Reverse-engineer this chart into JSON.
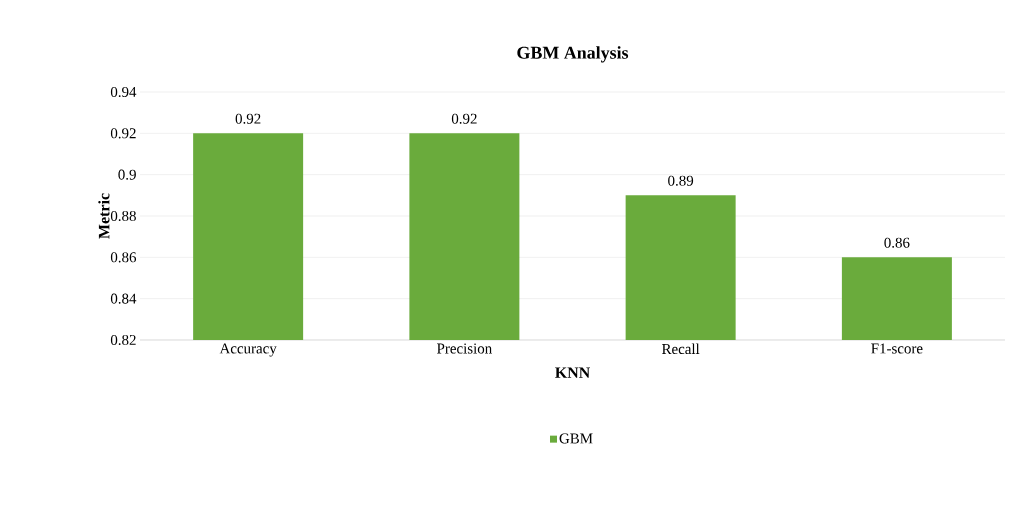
{
  "chart_data": {
    "type": "bar",
    "title": "GBM Analysis",
    "xlabel": "KNN",
    "ylabel": "Metric",
    "categories": [
      "Accuracy",
      "Precision",
      "Recall",
      "F1-score"
    ],
    "series": [
      {
        "name": "GBM",
        "color": "#6aab3c",
        "values": [
          0.92,
          0.92,
          0.89,
          0.86
        ]
      }
    ],
    "ylim": [
      0.82,
      0.94
    ],
    "yticks": [
      0.82,
      0.84,
      0.86,
      0.88,
      0.9,
      0.92,
      0.94
    ],
    "grid": "y",
    "legend": "bottom",
    "data_labels": true
  }
}
